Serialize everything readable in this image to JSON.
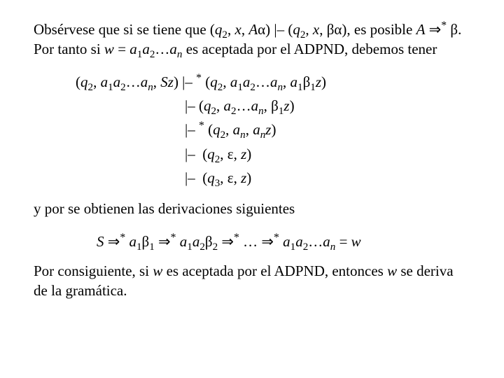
{
  "para1_html": "Obsérvese que si se tiene que (<span class=\"ital\">q</span><sub>2</sub>, <span class=\"ital\">x</span>, <span class=\"ital\">A</span>α) |– (<span class=\"ital\">q</span><sub>2</sub>, <span class=\"ital\">x</span>, βα), es posible <span class=\"ital\">A</span> ⇒<sup>*</sup> β. Por tanto si <span class=\"ital\">w</span> = <span class=\"ital\">a</span><sub>1</sub><span class=\"ital\">a</span><sub>2</sub>…<span class=\"ital\">a</span><sub class=\"sub-it\">n</sub> es aceptada por el ADPND, debemos tener",
  "deriv": [
    {
      "cls": "first",
      "html": "(<span class=\"ital\">q</span><sub>2</sub>, <span class=\"ital\">a</span><sub>1</sub><span class=\"ital\">a</span><sub>2</sub>…<span class=\"ital\">a</span><sub class=\"sub-it\">n</sub>, <span class=\"ital\">Sz</span>) |–&nbsp;<sup>*</sup> (<span class=\"ital\">q</span><sub>2</sub>, <span class=\"ital\">a</span><sub>1</sub><span class=\"ital\">a</span><sub>2</sub>…<span class=\"ital\">a</span><sub class=\"sub-it\">n</sub>, <span class=\"ital\">a</span><sub>1</sub>β<sub>1</sub><span class=\"ital\">z</span>)"
    },
    {
      "cls": "cont",
      "html": "|– (<span class=\"ital\">q</span><sub>2</sub>, <span class=\"ital\">a</span><sub>2</sub>…<span class=\"ital\">a</span><sub class=\"sub-it\">n</sub>, β<sub>1</sub><span class=\"ital\">z</span>)"
    },
    {
      "cls": "cont",
      "html": "|–&nbsp;<sup>*</sup> (<span class=\"ital\">q</span><sub>2</sub>, <span class=\"ital\">a</span><sub class=\"sub-it\">n</sub>, <span class=\"ital\">a</span><sub class=\"sub-it\">n</sub><span class=\"ital\">z</span>)"
    },
    {
      "cls": "cont",
      "html": "|–&nbsp; (<span class=\"ital\">q</span><sub>2</sub>, ε, <span class=\"ital\">z</span>)"
    },
    {
      "cls": "cont",
      "html": "|–&nbsp; (<span class=\"ital\">q</span><sub>3</sub>, ε, <span class=\"ital\">z</span>)"
    }
  ],
  "para2": "y por se obtienen las derivaciones siguientes",
  "chain_html": "<span class=\"ital\">S</span> ⇒<sup>*</sup> <span class=\"ital\">a</span><sub>1</sub>β<sub>1</sub> ⇒<sup>*</sup> <span class=\"ital\">a</span><sub>1</sub><span class=\"ital\">a</span><sub>2</sub>β<sub>2</sub> ⇒<sup>*</sup> … ⇒<sup>*</sup> <span class=\"ital\">a</span><sub>1</sub><span class=\"ital\">a</span><sub>2</sub>…<span class=\"ital\">a</span><sub class=\"sub-it\">n</sub> = <span class=\"ital\">w</span>",
  "para3_html": "Por consiguiente, si <span class=\"ital\">w</span> es aceptada por el ADPND, entonces <span class=\"ital\">w</span> se deriva de la gramática."
}
